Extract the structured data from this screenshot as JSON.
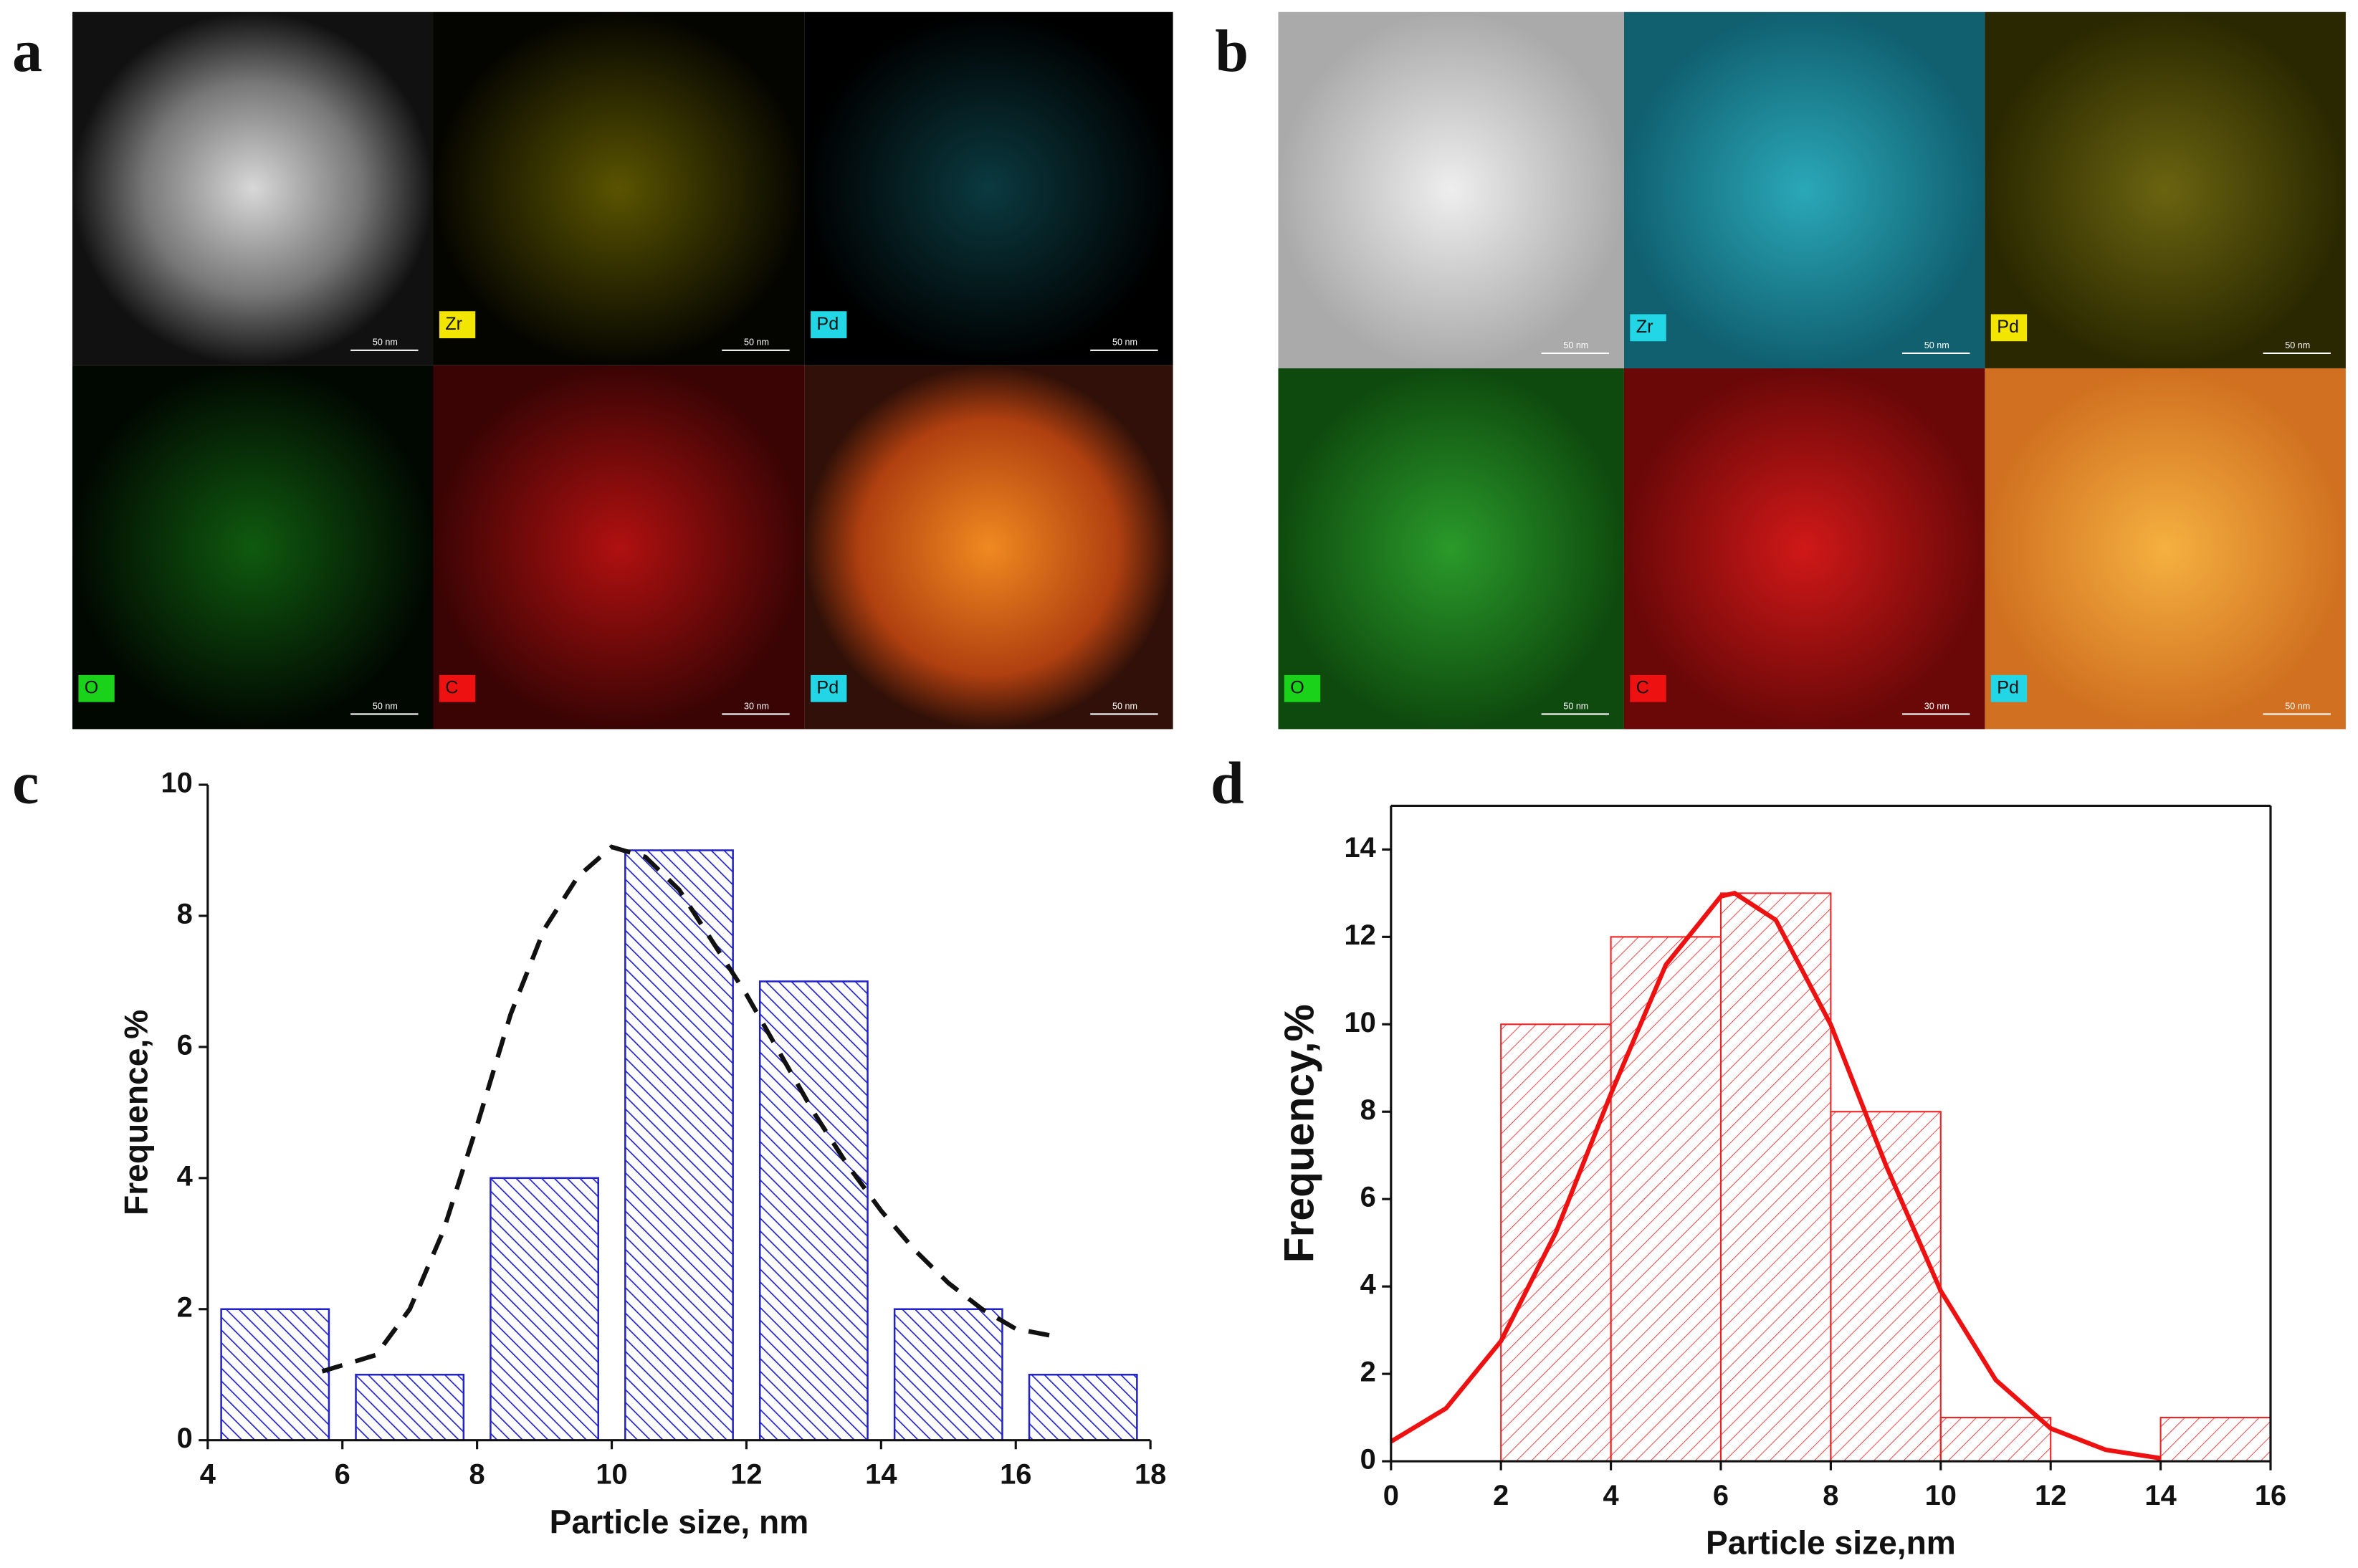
{
  "panels": [
    {
      "label": "a",
      "tiles": [
        {
          "scale": "50 nm"
        },
        {
          "tag": "Zr",
          "tag_color": "#f2e600",
          "scale": "50 nm"
        },
        {
          "tag": "Pd",
          "tag_color": "#22d6e6",
          "scale": "50 nm"
        },
        {
          "tag": "O",
          "tag_color": "#19d219",
          "scale": "50 nm"
        },
        {
          "tag": "C",
          "tag_color": "#ee1111",
          "scale": "30 nm"
        },
        {
          "tag": "Pd",
          "tag_color": "#22d6e6",
          "scale": "50 nm"
        }
      ]
    },
    {
      "label": "b",
      "tiles": [
        {
          "scale": "50 nm"
        },
        {
          "tag": "Zr",
          "tag_color": "#22d6e6",
          "scale": "50 nm"
        },
        {
          "tag": "Pd",
          "tag_color": "#f2e600",
          "scale": "50 nm"
        },
        {
          "tag": "O",
          "tag_color": "#19d219",
          "scale": "50 nm"
        },
        {
          "tag": "C",
          "tag_color": "#ee1111",
          "scale": "30 nm"
        },
        {
          "tag": "Pd",
          "tag_color": "#22d6e6",
          "scale": "50 nm"
        }
      ]
    }
  ],
  "chart_data": [
    {
      "type": "bar",
      "panel_label": "c",
      "xlabel": "Particle size, nm",
      "ylabel": "Frequence,%",
      "x": [
        5,
        7,
        9,
        11,
        13,
        15,
        17
      ],
      "bar_width": 1.6,
      "values": [
        2,
        1,
        4,
        9,
        7,
        2,
        1
      ],
      "color": "#2222cc",
      "xlim": [
        4,
        18
      ],
      "xticks": [
        4,
        6,
        8,
        10,
        12,
        14,
        16,
        18
      ],
      "ylim": [
        0,
        10
      ],
      "yticks": [
        0,
        2,
        4,
        6,
        8,
        10
      ],
      "fit": {
        "color": "#111111",
        "dashed": true,
        "x": [
          5.7,
          6.5,
          7,
          7.5,
          8,
          8.5,
          9,
          9.5,
          10,
          10.5,
          11,
          11.5,
          12,
          12.5,
          13,
          13.5,
          14,
          14.5,
          15,
          15.5,
          16,
          16.5
        ],
        "y": [
          1.05,
          1.3,
          2,
          3.2,
          4.8,
          6.5,
          7.8,
          8.6,
          9.05,
          8.9,
          8.4,
          7.6,
          6.8,
          5.9,
          5,
          4.2,
          3.5,
          2.9,
          2.4,
          2,
          1.7,
          1.6
        ]
      }
    },
    {
      "type": "histogram",
      "panel_label": "d",
      "xlabel": "Particle size,nm",
      "ylabel": "Frequency,%",
      "bins": [
        2,
        4,
        6,
        8,
        10,
        12,
        14,
        16
      ],
      "values": [
        10,
        12,
        13,
        8,
        1,
        0,
        1
      ],
      "color": "#ee2222",
      "xlim": [
        0,
        16
      ],
      "xticks": [
        0,
        2,
        4,
        6,
        8,
        10,
        12,
        14,
        16
      ],
      "ylim": [
        0,
        15
      ],
      "yticks": [
        0,
        2,
        4,
        6,
        8,
        10,
        12,
        14
      ],
      "fit": {
        "color": "#ee1111",
        "dashed": false,
        "x": [
          0,
          1,
          2,
          3,
          4,
          5,
          6,
          6.25,
          7,
          8,
          9,
          10,
          11,
          12,
          13,
          14
        ],
        "y": [
          0.45,
          1.21,
          2.75,
          5.24,
          8.41,
          11.36,
          12.93,
          13,
          12.39,
          9.99,
          6.78,
          3.9,
          1.86,
          0.75,
          0.26,
          0.07
        ]
      }
    }
  ]
}
